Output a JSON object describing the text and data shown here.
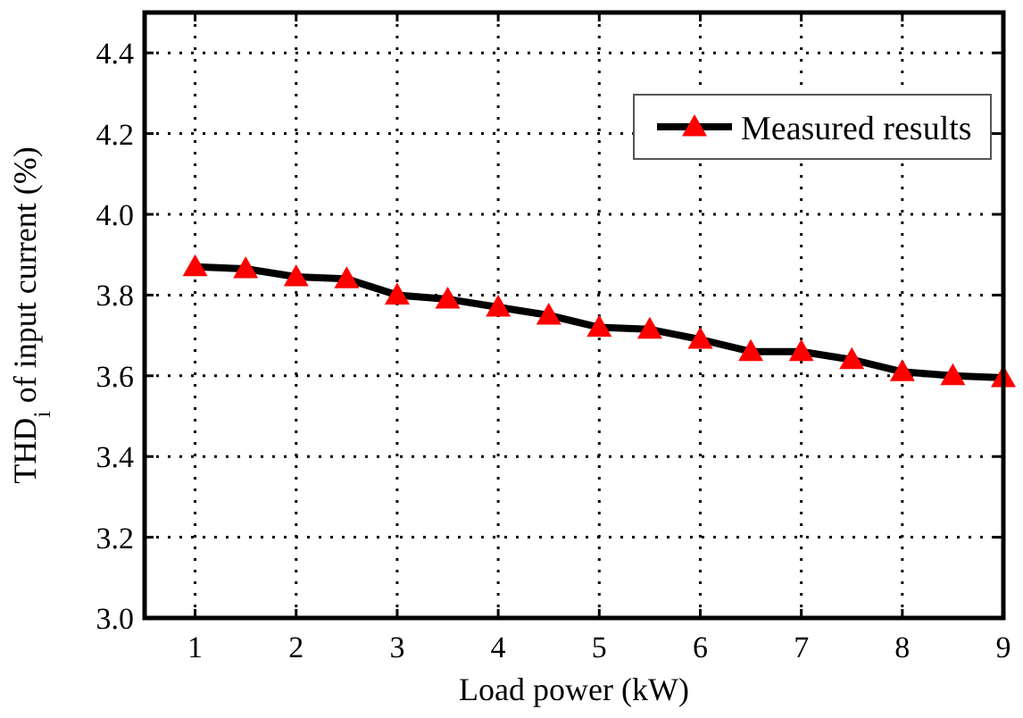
{
  "chart_data": {
    "type": "line",
    "xlabel": "Load power  (kW)",
    "ylabel": "THD$_{i}$ of input current (%)",
    "x": [
      1,
      1.5,
      2,
      2.5,
      3,
      3.5,
      4,
      4.5,
      5,
      5.5,
      6,
      6.5,
      7,
      7.5,
      8,
      8.5,
      9
    ],
    "series": [
      {
        "name": "Measured results",
        "color": "#ff0000",
        "values": [
          3.87,
          3.865,
          3.845,
          3.84,
          3.8,
          3.79,
          3.77,
          3.75,
          3.72,
          3.715,
          3.69,
          3.66,
          3.66,
          3.64,
          3.61,
          3.6,
          3.595
        ]
      }
    ],
    "xlim": [
      0.5,
      9
    ],
    "xticks": [
      1,
      2,
      3,
      4,
      5,
      6,
      7,
      8,
      9
    ],
    "ylim": [
      3,
      4.5
    ],
    "yticks": [
      {
        "value": 3,
        "label": "3.0"
      },
      {
        "value": 3.2,
        "label": "3.2"
      },
      {
        "value": 3.4,
        "label": "3.4"
      },
      {
        "value": 3.6,
        "label": "3.6"
      },
      {
        "value": 3.8,
        "label": "3.8"
      },
      {
        "value": 4,
        "label": "4.0"
      },
      {
        "value": 4.2,
        "label": "4.2"
      },
      {
        "value": 4.4,
        "label": "4.4"
      }
    ],
    "grid": true,
    "legend": "top right",
    "marker": "triangle",
    "line_style": "solid"
  }
}
